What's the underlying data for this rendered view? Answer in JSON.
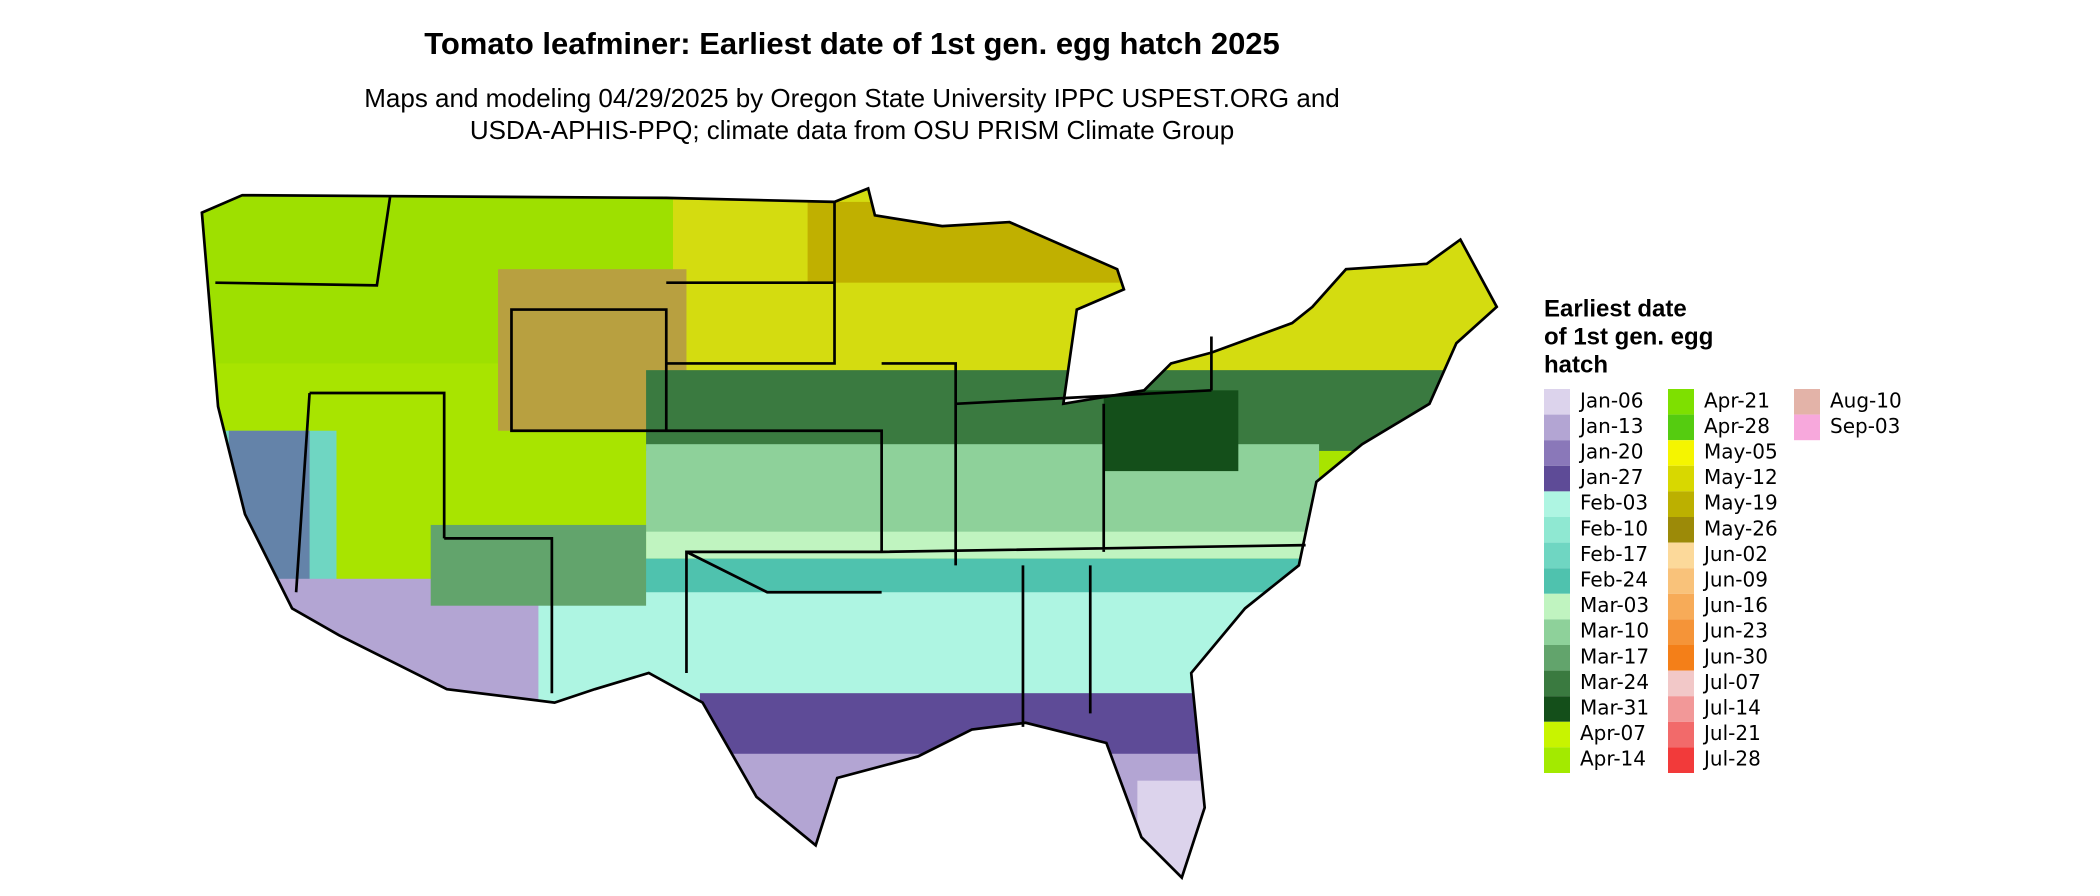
{
  "title": "Tomato leafminer: Earliest date of 1st gen. egg hatch 2025",
  "subtitle": [
    "Maps and modeling 04/29/2025 by Oregon State University IPPC USPEST.ORG and",
    "USDA-APHIS-PPQ; climate data from OSU PRISM Climate Group"
  ],
  "legend": {
    "title": [
      "Earliest date",
      "of 1st gen. egg",
      "hatch"
    ],
    "items": [
      {
        "label": "Jan-06",
        "color": "#dcd3ec"
      },
      {
        "label": "Jan-13",
        "color": "#b3a5d3"
      },
      {
        "label": "Jan-20",
        "color": "#8a78b9"
      },
      {
        "label": "Jan-27",
        "color": "#5e4b97"
      },
      {
        "label": "Feb-03",
        "color": "#aef5e2"
      },
      {
        "label": "Feb-10",
        "color": "#8fe8d2"
      },
      {
        "label": "Feb-17",
        "color": "#6fd6c2"
      },
      {
        "label": "Feb-24",
        "color": "#4fc2ae"
      },
      {
        "label": "Mar-03",
        "color": "#c0f4c0"
      },
      {
        "label": "Mar-10",
        "color": "#8ed19a"
      },
      {
        "label": "Mar-17",
        "color": "#62a46c"
      },
      {
        "label": "Mar-24",
        "color": "#3a7a40"
      },
      {
        "label": "Mar-31",
        "color": "#144f1a"
      },
      {
        "label": "Apr-07",
        "color": "#c8f400"
      },
      {
        "label": "Apr-14",
        "color": "#a3ea00"
      },
      {
        "label": "Apr-21",
        "color": "#7ee000"
      },
      {
        "label": "Apr-28",
        "color": "#55cc10"
      },
      {
        "label": "May-05",
        "color": "#f5f500"
      },
      {
        "label": "May-12",
        "color": "#d8d800"
      },
      {
        "label": "May-19",
        "color": "#bcb000"
      },
      {
        "label": "May-26",
        "color": "#9c8a08"
      },
      {
        "label": "Jun-02",
        "color": "#fcd99a"
      },
      {
        "label": "Jun-09",
        "color": "#f9c27a"
      },
      {
        "label": "Jun-16",
        "color": "#f7ab58"
      },
      {
        "label": "Jun-23",
        "color": "#f59438"
      },
      {
        "label": "Jun-30",
        "color": "#f47f18"
      },
      {
        "label": "Jul-07",
        "color": "#f2c8c8"
      },
      {
        "label": "Jul-14",
        "color": "#f29898"
      },
      {
        "label": "Jul-21",
        "color": "#f26a6a"
      },
      {
        "label": "Jul-28",
        "color": "#f23a3a"
      },
      {
        "label": "Aug-10",
        "color": "#e3b3a8"
      },
      {
        "label": "Sep-03",
        "color": "#f7a8dc"
      }
    ]
  }
}
